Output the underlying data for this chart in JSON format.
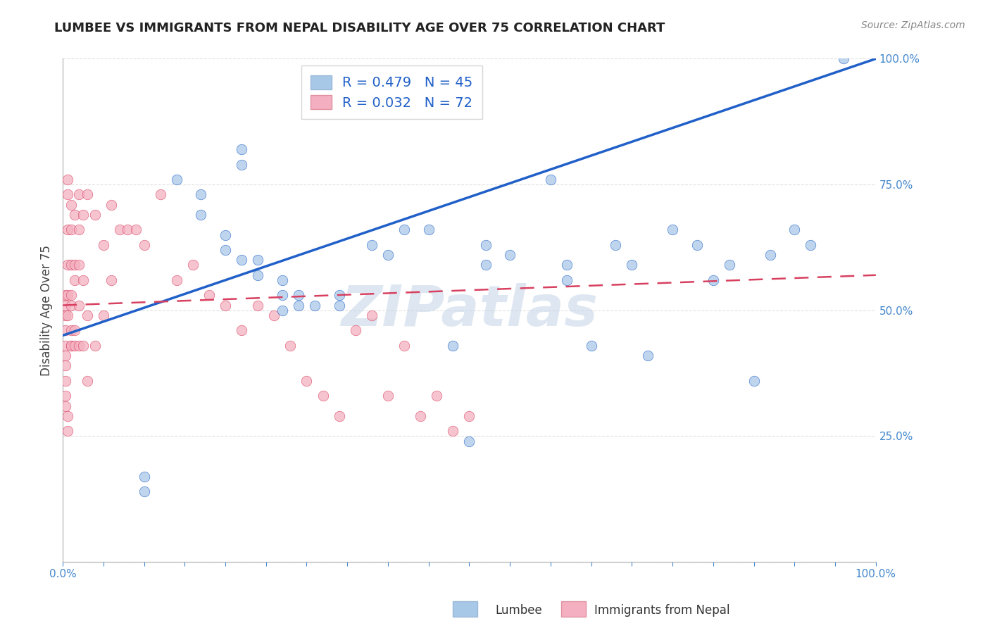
{
  "title": "LUMBEE VS IMMIGRANTS FROM NEPAL DISABILITY AGE OVER 75 CORRELATION CHART",
  "source": "Source: ZipAtlas.com",
  "ylabel": "Disability Age Over 75",
  "xlabel_lumbee": "Lumbee",
  "xlabel_nepal": "Immigrants from Nepal",
  "xlim": [
    0,
    1.0
  ],
  "ylim": [
    0,
    1.0
  ],
  "lumbee_R": 0.479,
  "lumbee_N": 45,
  "nepal_R": 0.032,
  "nepal_N": 72,
  "lumbee_color": "#a8c8e8",
  "nepal_color": "#f4b0c0",
  "lumbee_line_color": "#2060c8",
  "nepal_line_color": "#d84060",
  "legend_text_color": "#2060c8",
  "bg_color": "#ffffff",
  "grid_color": "#e0e0e0",
  "watermark": "ZIPatlas",
  "lumbee_x": [
    0.22,
    0.22,
    0.1,
    0.1,
    0.14,
    0.17,
    0.17,
    0.2,
    0.2,
    0.22,
    0.24,
    0.24,
    0.27,
    0.27,
    0.27,
    0.29,
    0.29,
    0.31,
    0.34,
    0.34,
    0.38,
    0.4,
    0.42,
    0.45,
    0.48,
    0.5,
    0.52,
    0.52,
    0.55,
    0.6,
    0.62,
    0.62,
    0.65,
    0.68,
    0.7,
    0.72,
    0.75,
    0.78,
    0.8,
    0.82,
    0.85,
    0.87,
    0.9,
    0.92,
    0.96
  ],
  "lumbee_y": [
    0.82,
    0.79,
    0.17,
    0.14,
    0.76,
    0.73,
    0.69,
    0.65,
    0.62,
    0.6,
    0.6,
    0.57,
    0.56,
    0.53,
    0.5,
    0.53,
    0.51,
    0.51,
    0.51,
    0.53,
    0.63,
    0.61,
    0.66,
    0.66,
    0.43,
    0.24,
    0.63,
    0.59,
    0.61,
    0.76,
    0.59,
    0.56,
    0.43,
    0.63,
    0.59,
    0.41,
    0.66,
    0.63,
    0.56,
    0.59,
    0.36,
    0.61,
    0.66,
    0.63,
    1.0
  ],
  "nepal_x": [
    0.003,
    0.003,
    0.003,
    0.003,
    0.003,
    0.003,
    0.003,
    0.003,
    0.003,
    0.003,
    0.006,
    0.006,
    0.006,
    0.006,
    0.006,
    0.006,
    0.006,
    0.006,
    0.01,
    0.01,
    0.01,
    0.01,
    0.01,
    0.01,
    0.01,
    0.01,
    0.015,
    0.015,
    0.015,
    0.015,
    0.015,
    0.02,
    0.02,
    0.02,
    0.02,
    0.02,
    0.025,
    0.025,
    0.025,
    0.03,
    0.03,
    0.03,
    0.04,
    0.04,
    0.05,
    0.05,
    0.06,
    0.06,
    0.07,
    0.08,
    0.09,
    0.1,
    0.12,
    0.14,
    0.16,
    0.18,
    0.2,
    0.22,
    0.24,
    0.26,
    0.28,
    0.3,
    0.32,
    0.34,
    0.36,
    0.38,
    0.4,
    0.42,
    0.44,
    0.46,
    0.48,
    0.5
  ],
  "nepal_y": [
    0.53,
    0.51,
    0.49,
    0.46,
    0.43,
    0.41,
    0.39,
    0.36,
    0.33,
    0.31,
    0.76,
    0.73,
    0.66,
    0.59,
    0.53,
    0.49,
    0.29,
    0.26,
    0.71,
    0.66,
    0.59,
    0.51,
    0.43,
    0.53,
    0.46,
    0.43,
    0.69,
    0.56,
    0.43,
    0.59,
    0.46,
    0.73,
    0.66,
    0.59,
    0.51,
    0.43,
    0.69,
    0.56,
    0.43,
    0.73,
    0.49,
    0.36,
    0.69,
    0.43,
    0.63,
    0.49,
    0.71,
    0.56,
    0.66,
    0.66,
    0.66,
    0.63,
    0.73,
    0.56,
    0.59,
    0.53,
    0.51,
    0.46,
    0.51,
    0.49,
    0.43,
    0.36,
    0.33,
    0.29,
    0.46,
    0.49,
    0.33,
    0.43,
    0.29,
    0.33,
    0.26,
    0.29
  ]
}
